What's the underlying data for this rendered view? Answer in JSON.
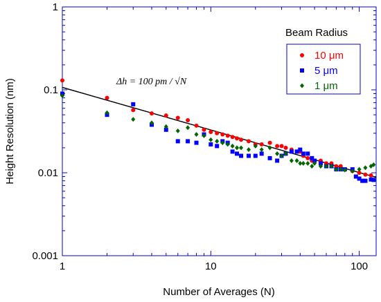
{
  "chart_data": {
    "type": "scatter",
    "title": "",
    "xlabel": "Number of Averages (N)",
    "ylabel": "Height Resolution (nm)",
    "xscale": "log",
    "yscale": "log",
    "xlim": [
      1,
      130
    ],
    "ylim": [
      0.001,
      1
    ],
    "xticks": [
      1,
      10,
      100
    ],
    "xtick_labels": [
      "1",
      "10",
      "100"
    ],
    "yticks": [
      0.001,
      0.01,
      0.1,
      1
    ],
    "ytick_labels": [
      "0.001",
      "0.01",
      "0.1",
      "1"
    ],
    "grid": false,
    "legend": {
      "title": "Beam Radius",
      "placement": "top-right"
    },
    "annotation": "Δh = 100 pm / √N",
    "fit_line": {
      "x": [
        1,
        130
      ],
      "y": [
        0.107,
        0.0088
      ],
      "color": "#000000"
    },
    "series": [
      {
        "name": "10 μm",
        "color": "#ff0000",
        "marker": "circle",
        "x": [
          1,
          2,
          3,
          4,
          5,
          6,
          7,
          8,
          9,
          10,
          11,
          12,
          13,
          14,
          15,
          16,
          18,
          20,
          22,
          25,
          28,
          30,
          32,
          35,
          38,
          40,
          42,
          45,
          48,
          50,
          55,
          60,
          65,
          70,
          75,
          80,
          90,
          100,
          110,
          120
        ],
        "y": [
          0.13,
          0.08,
          0.057,
          0.052,
          0.049,
          0.046,
          0.043,
          0.037,
          0.033,
          0.031,
          0.03,
          0.029,
          0.028,
          0.027,
          0.026,
          0.025,
          0.024,
          0.022,
          0.022,
          0.023,
          0.021,
          0.021,
          0.02,
          0.019,
          0.018,
          0.018,
          0.016,
          0.015,
          0.014,
          0.014,
          0.014,
          0.013,
          0.013,
          0.012,
          0.012,
          0.011,
          0.0105,
          0.01,
          0.0095,
          0.0093
        ]
      },
      {
        "name": "5 μm",
        "color": "#0000ff",
        "marker": "square",
        "x": [
          1,
          2,
          3,
          4,
          5,
          6,
          7,
          8,
          9,
          10,
          11,
          12,
          13,
          14,
          15,
          16,
          18,
          20,
          22,
          25,
          28,
          30,
          32,
          35,
          38,
          40,
          42,
          45,
          48,
          50,
          55,
          60,
          65,
          70,
          75,
          80,
          90,
          95,
          100,
          105,
          110,
          120,
          125
        ],
        "y": [
          0.09,
          0.05,
          0.067,
          0.038,
          0.033,
          0.024,
          0.024,
          0.023,
          0.029,
          0.022,
          0.021,
          0.024,
          0.023,
          0.018,
          0.017,
          0.016,
          0.016,
          0.016,
          0.017,
          0.015,
          0.014,
          0.016,
          0.017,
          0.018,
          0.018,
          0.019,
          0.017,
          0.017,
          0.015,
          0.014,
          0.013,
          0.012,
          0.012,
          0.011,
          0.011,
          0.011,
          0.011,
          0.009,
          0.0085,
          0.008,
          0.008,
          0.0083,
          0.0082
        ]
      },
      {
        "name": "1 μm",
        "color": "#006600",
        "marker": "diamond",
        "x": [
          1,
          2,
          3,
          4,
          5,
          6,
          7,
          8,
          9,
          10,
          11,
          12,
          13,
          14,
          15,
          16,
          18,
          20,
          22,
          25,
          28,
          30,
          32,
          35,
          38,
          40,
          42,
          45,
          48,
          50,
          55,
          60,
          65,
          70,
          75,
          80,
          90,
          100,
          110,
          120,
          125
        ],
        "y": [
          0.085,
          0.053,
          0.044,
          0.04,
          0.036,
          0.032,
          0.035,
          0.029,
          0.028,
          0.025,
          0.024,
          0.023,
          0.022,
          0.021,
          0.02,
          0.02,
          0.019,
          0.021,
          0.019,
          0.02,
          0.017,
          0.016,
          0.017,
          0.014,
          0.014,
          0.013,
          0.013,
          0.013,
          0.012,
          0.013,
          0.012,
          0.012,
          0.012,
          0.011,
          0.011,
          0.0108,
          0.0105,
          0.011,
          0.0115,
          0.012,
          0.0125
        ]
      }
    ]
  }
}
